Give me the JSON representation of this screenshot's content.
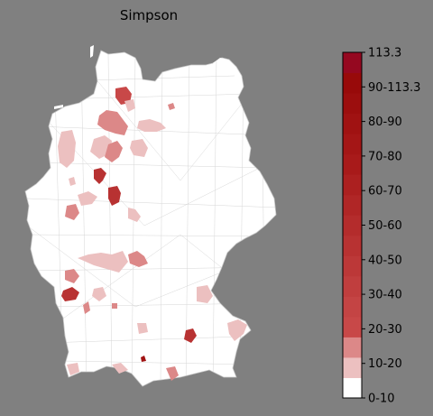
{
  "figure": {
    "title": "Simpson",
    "background": "#808080",
    "land_color": "#ffffff",
    "border_color": "#b0b0b0"
  },
  "legend": {
    "tick_labels": [
      "113.3",
      "90-113.3",
      "80-90",
      "70-80",
      "60-70",
      "50-60",
      "40-50",
      "30-40",
      "20-30",
      "10-20",
      "0-10"
    ],
    "bins": [
      {
        "label": "0-10",
        "color": "#ffffff"
      },
      {
        "label": "10-20",
        "color": "#ecc0c0"
      },
      {
        "label": "20-30",
        "color": "#dc8888"
      },
      {
        "label": "30-40",
        "color": "#c84848"
      },
      {
        "label": "",
        "color": "#c44444"
      },
      {
        "label": "40-50",
        "color": "#c03e3e"
      },
      {
        "label": "",
        "color": "#bc3838"
      },
      {
        "label": "50-60",
        "color": "#b83232"
      },
      {
        "label": "",
        "color": "#b42c2c"
      },
      {
        "label": "60-70",
        "color": "#b02626"
      },
      {
        "label": "",
        "color": "#ac2020"
      },
      {
        "label": "70-80",
        "color": "#a81a1a"
      },
      {
        "label": "",
        "color": "#a41616"
      },
      {
        "label": "80-90",
        "color": "#a01212"
      },
      {
        "label": "",
        "color": "#9c0e0e"
      },
      {
        "label": "90-113.3",
        "color": "#980a0a"
      },
      {
        "label": "",
        "color": "#950820"
      }
    ]
  }
}
